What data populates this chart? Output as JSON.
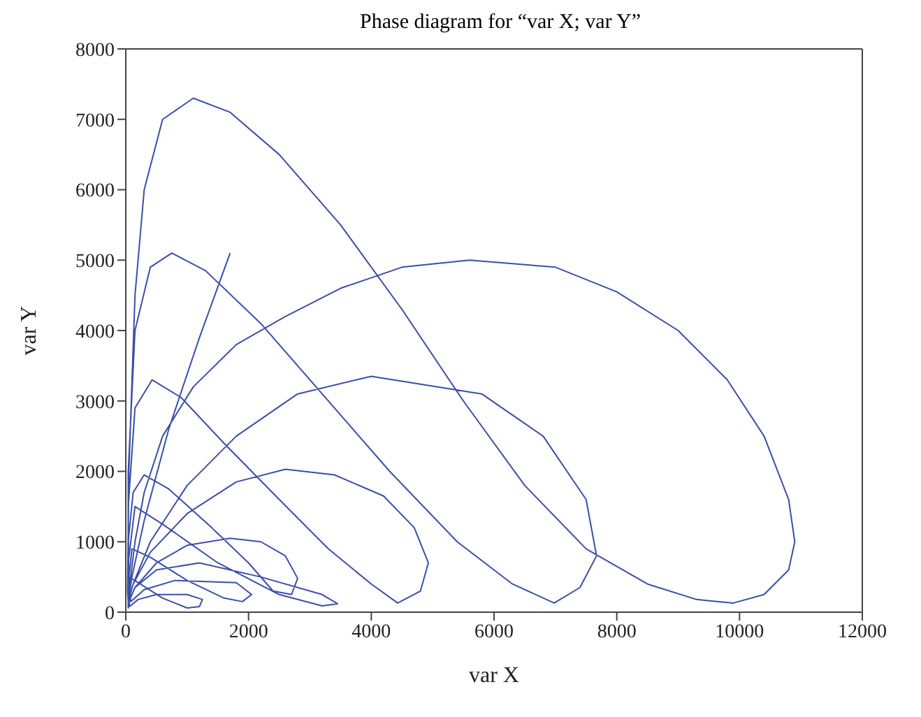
{
  "chart_data": {
    "type": "line",
    "title": "Phase diagram for “var X; var Y”",
    "xlabel": "var X",
    "ylabel": "var Y",
    "xlim": [
      0,
      12000
    ],
    "ylim": [
      0,
      8000
    ],
    "xticks": [
      0,
      2000,
      4000,
      6000,
      8000,
      10000,
      12000
    ],
    "yticks": [
      0,
      1000,
      2000,
      3000,
      4000,
      5000,
      6000,
      7000,
      8000
    ],
    "marker": "none",
    "line_style": "solid",
    "series": [
      {
        "color": "#3a4fa8",
        "x": [
          1700,
          1200,
          700,
          300,
          100,
          40,
          40,
          40,
          50,
          200,
          600,
          1000,
          1200,
          1250,
          1000,
          500,
          200,
          60,
          40,
          100,
          400,
          1000,
          1600,
          1900,
          2050,
          1800,
          800,
          300,
          80,
          40,
          150,
          600,
          1500,
          2500,
          3200,
          3450,
          3200,
          2200,
          1200,
          500,
          150,
          50,
          40,
          120,
          300,
          700,
          1400,
          2000,
          2400,
          2700,
          2800,
          2600,
          2200,
          1700,
          1000,
          500,
          150,
          50,
          40,
          150,
          430,
          900,
          1600,
          2500,
          3300,
          4000,
          4430,
          4800,
          4930,
          4700,
          4200,
          3400,
          2600,
          1800,
          1000,
          400,
          120,
          40,
          40,
          150,
          400,
          750,
          1300,
          2200,
          3200,
          4300,
          5400,
          6300,
          6980,
          7400,
          7670,
          7500,
          6800,
          5800,
          4000,
          2800,
          1800,
          1000,
          400,
          120,
          40,
          30,
          50,
          150,
          300,
          600,
          1100,
          1700,
          2500,
          3500,
          4500,
          5500,
          6500,
          7500,
          8500,
          9300,
          9900,
          10400,
          10800,
          10900,
          10800,
          10400,
          9800,
          9000,
          8000,
          7000,
          5600,
          4500,
          3500,
          2600,
          1800,
          1100,
          600,
          300,
          150,
          80,
          40
        ],
        "values": [
          5100,
          3900,
          2600,
          1300,
          500,
          150,
          60,
          300,
          500,
          420,
          200,
          60,
          80,
          180,
          250,
          250,
          180,
          80,
          400,
          900,
          780,
          450,
          200,
          150,
          250,
          420,
          450,
          320,
          150,
          700,
          1500,
          1250,
          700,
          250,
          90,
          120,
          250,
          500,
          700,
          600,
          350,
          150,
          1000,
          1700,
          1950,
          1750,
          1200,
          700,
          300,
          250,
          480,
          800,
          1000,
          1050,
          950,
          700,
          350,
          150,
          1500,
          2900,
          3300,
          3050,
          2400,
          1600,
          900,
          400,
          130,
          300,
          700,
          1200,
          1650,
          1950,
          2030,
          1850,
          1400,
          850,
          400,
          150,
          2000,
          4000,
          4900,
          5100,
          4850,
          4100,
          3100,
          2000,
          1000,
          400,
          130,
          350,
          800,
          1600,
          2500,
          3100,
          3350,
          3100,
          2500,
          1800,
          1000,
          400,
          150,
          300,
          2000,
          4500,
          6000,
          7000,
          7300,
          7100,
          6500,
          5500,
          4300,
          3000,
          1800,
          900,
          400,
          180,
          130,
          250,
          600,
          1000,
          1600,
          2500,
          3300,
          4000,
          4550,
          4900,
          5000,
          4900,
          4600,
          4200,
          3800,
          3200,
          2500,
          1700,
          1000,
          500,
          200
        ]
      }
    ]
  }
}
